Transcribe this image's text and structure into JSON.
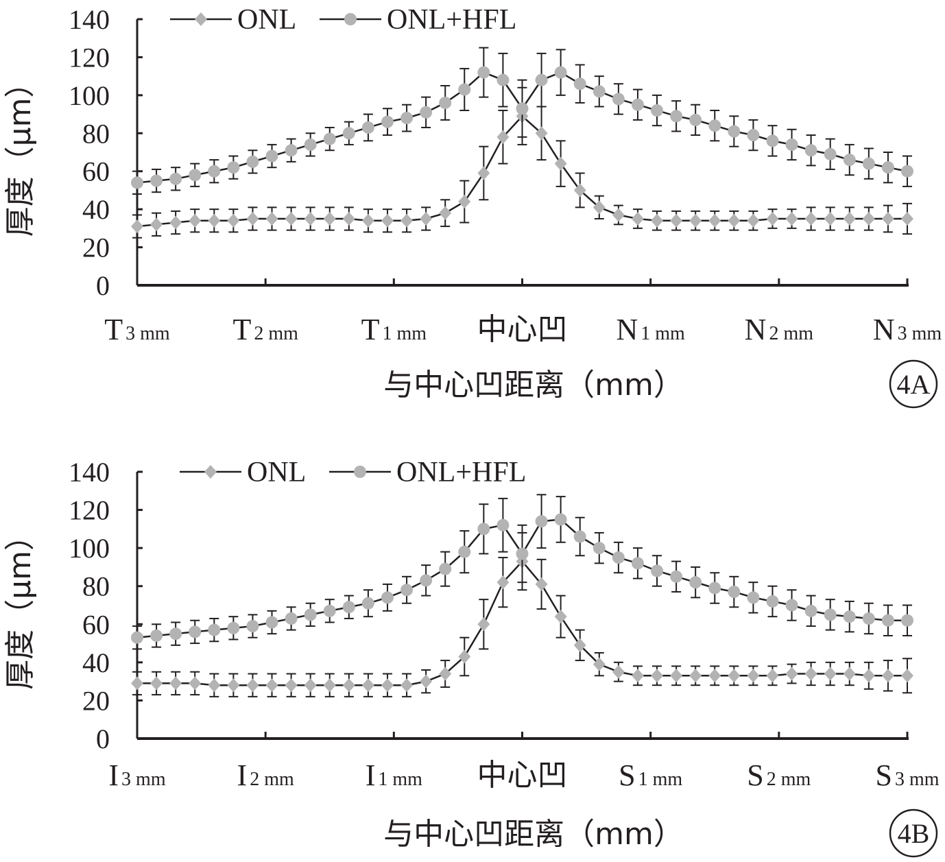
{
  "colors": {
    "axis": "#231f20",
    "line": "#231f20",
    "marker": "#b3b3b3",
    "error_bar": "#231f20"
  },
  "chart_data": [
    {
      "type": "line",
      "panel_label": "4A",
      "ylabel": "厚度（μm）",
      "xlabel": "与中心凹距离（mm）",
      "ylim": [
        0,
        140
      ],
      "yticks": [
        "0",
        "20",
        "40",
        "60",
        "80",
        "100",
        "120",
        "140"
      ],
      "category_labels": [
        {
          "main": "T",
          "sub": "3 mm"
        },
        {
          "main": "T",
          "sub": "2 mm"
        },
        {
          "main": "T",
          "sub": "1 mm"
        },
        {
          "main": "中心凹",
          "sub": ""
        },
        {
          "main": "N",
          "sub": "1 mm"
        },
        {
          "main": "N",
          "sub": "2 mm"
        },
        {
          "main": "N",
          "sub": "3 mm"
        }
      ],
      "x": [
        -3.0,
        -2.9,
        -2.8,
        -2.7,
        -2.6,
        -2.5,
        -2.4,
        -2.3,
        -2.2,
        -2.1,
        -2.0,
        -1.9,
        -1.8,
        -1.7,
        -1.6,
        -1.5,
        -1.4,
        -1.3,
        -1.2,
        -1.1,
        -1.0,
        -0.9,
        -0.8,
        -0.7,
        -0.6,
        -0.5,
        -0.4,
        -0.3,
        -0.2,
        -0.1,
        0.0,
        0.1,
        0.2,
        0.3,
        0.4,
        0.5,
        0.6,
        0.7,
        0.8,
        0.9,
        1.0,
        1.1,
        1.2,
        1.3,
        1.4,
        1.5,
        1.6,
        1.7,
        1.8,
        1.9,
        2.0,
        2.1,
        2.2,
        2.3,
        2.4,
        2.5,
        2.6,
        2.7,
        2.8,
        2.9,
        3.0
      ],
      "legend_position": "top-left",
      "series": [
        {
          "name": "ONL",
          "marker": "diamond",
          "x": [
            -3.0,
            -2.85,
            -2.7,
            -2.55,
            -2.4,
            -2.25,
            -2.1,
            -1.95,
            -1.8,
            -1.65,
            -1.5,
            -1.35,
            -1.2,
            -1.05,
            -0.9,
            -0.75,
            -0.6,
            -0.45,
            -0.3,
            -0.15,
            0.0,
            0.15,
            0.3,
            0.45,
            0.6,
            0.75,
            0.9,
            1.05,
            1.2,
            1.35,
            1.5,
            1.65,
            1.8,
            1.95,
            2.1,
            2.25,
            2.4,
            2.55,
            2.7,
            2.85,
            3.0
          ],
          "values": [
            31,
            32,
            33,
            34,
            34,
            34,
            35,
            35,
            35,
            35,
            35,
            35,
            34,
            34,
            34,
            35,
            38,
            44,
            59,
            78,
            89,
            80,
            64,
            50,
            41,
            37,
            35,
            34,
            34,
            34,
            34,
            34,
            34,
            35,
            35,
            35,
            35,
            35,
            35,
            35,
            35
          ],
          "errors": [
            6,
            6,
            6,
            6,
            6,
            6,
            6,
            6,
            6,
            6,
            6,
            6,
            6,
            6,
            6,
            6,
            7,
            11,
            14,
            14,
            15,
            14,
            12,
            9,
            6,
            5,
            5,
            5,
            5,
            5,
            5,
            5,
            5,
            5,
            5,
            6,
            6,
            6,
            6,
            7,
            8
          ]
        },
        {
          "name": "ONL+HFL",
          "marker": "circle",
          "x": [
            -3.0,
            -2.85,
            -2.7,
            -2.55,
            -2.4,
            -2.25,
            -2.1,
            -1.95,
            -1.8,
            -1.65,
            -1.5,
            -1.35,
            -1.2,
            -1.05,
            -0.9,
            -0.75,
            -0.6,
            -0.45,
            -0.3,
            -0.15,
            0.0,
            0.15,
            0.3,
            0.45,
            0.6,
            0.75,
            0.9,
            1.05,
            1.2,
            1.35,
            1.5,
            1.65,
            1.8,
            1.95,
            2.1,
            2.25,
            2.4,
            2.55,
            2.7,
            2.85,
            3.0
          ],
          "values": [
            54,
            55,
            56,
            58,
            60,
            62,
            65,
            68,
            71,
            74,
            77,
            80,
            83,
            86,
            88,
            91,
            96,
            103,
            112,
            108,
            93,
            108,
            112,
            106,
            102,
            98,
            95,
            92,
            89,
            87,
            84,
            81,
            79,
            76,
            74,
            71,
            69,
            66,
            64,
            62,
            60
          ],
          "errors": [
            6,
            6,
            6,
            6,
            6,
            6,
            6,
            6,
            6,
            6,
            6,
            6,
            7,
            7,
            7,
            8,
            9,
            11,
            13,
            14,
            15,
            14,
            12,
            10,
            8,
            8,
            8,
            8,
            8,
            8,
            8,
            8,
            8,
            8,
            8,
            8,
            8,
            8,
            8,
            8,
            8
          ]
        }
      ]
    },
    {
      "type": "line",
      "panel_label": "4B",
      "ylabel": "厚度（μm）",
      "xlabel": "与中心凹距离（mm）",
      "ylim": [
        0,
        140
      ],
      "yticks": [
        "0",
        "20",
        "40",
        "60",
        "80",
        "100",
        "120",
        "140"
      ],
      "category_labels": [
        {
          "main": "I",
          "sub": "3 mm"
        },
        {
          "main": "I",
          "sub": "2 mm"
        },
        {
          "main": "I",
          "sub": "1 mm"
        },
        {
          "main": "中心凹",
          "sub": ""
        },
        {
          "main": "S",
          "sub": "1 mm"
        },
        {
          "main": "S",
          "sub": "2 mm"
        },
        {
          "main": "S",
          "sub": "3 mm"
        }
      ],
      "legend_position": "top-left",
      "series": [
        {
          "name": "ONL",
          "marker": "diamond",
          "x": [
            -3.0,
            -2.85,
            -2.7,
            -2.55,
            -2.4,
            -2.25,
            -2.1,
            -1.95,
            -1.8,
            -1.65,
            -1.5,
            -1.35,
            -1.2,
            -1.05,
            -0.9,
            -0.75,
            -0.6,
            -0.45,
            -0.3,
            -0.15,
            0.0,
            0.15,
            0.3,
            0.45,
            0.6,
            0.75,
            0.9,
            1.05,
            1.2,
            1.35,
            1.5,
            1.65,
            1.8,
            1.95,
            2.1,
            2.25,
            2.4,
            2.55,
            2.7,
            2.85,
            3.0
          ],
          "values": [
            29,
            29,
            29,
            29,
            28,
            28,
            28,
            28,
            28,
            28,
            28,
            28,
            28,
            28,
            28,
            30,
            34,
            43,
            60,
            82,
            93,
            81,
            64,
            49,
            39,
            35,
            33,
            33,
            33,
            33,
            33,
            33,
            33,
            33,
            34,
            34,
            34,
            34,
            33,
            33,
            33
          ],
          "errors": [
            6,
            6,
            6,
            6,
            6,
            6,
            6,
            6,
            6,
            6,
            6,
            6,
            6,
            6,
            6,
            6,
            7,
            10,
            13,
            13,
            15,
            13,
            11,
            8,
            6,
            5,
            5,
            5,
            5,
            5,
            5,
            5,
            5,
            5,
            5,
            6,
            6,
            6,
            7,
            8,
            9
          ]
        },
        {
          "name": "ONL+HFL",
          "marker": "circle",
          "x": [
            -3.0,
            -2.85,
            -2.7,
            -2.55,
            -2.4,
            -2.25,
            -2.1,
            -1.95,
            -1.8,
            -1.65,
            -1.5,
            -1.35,
            -1.2,
            -1.05,
            -0.9,
            -0.75,
            -0.6,
            -0.45,
            -0.3,
            -0.15,
            0.0,
            0.15,
            0.3,
            0.45,
            0.6,
            0.75,
            0.9,
            1.05,
            1.2,
            1.35,
            1.5,
            1.65,
            1.8,
            1.95,
            2.1,
            2.25,
            2.4,
            2.55,
            2.7,
            2.85,
            3.0
          ],
          "values": [
            53,
            54,
            55,
            56,
            57,
            58,
            59,
            61,
            63,
            65,
            67,
            69,
            71,
            74,
            78,
            83,
            89,
            98,
            110,
            112,
            97,
            114,
            115,
            106,
            100,
            95,
            92,
            88,
            85,
            82,
            79,
            77,
            74,
            72,
            70,
            67,
            65,
            64,
            63,
            62,
            62
          ],
          "errors": [
            6,
            6,
            6,
            6,
            6,
            6,
            6,
            6,
            6,
            6,
            6,
            6,
            7,
            7,
            7,
            8,
            9,
            11,
            13,
            14,
            15,
            14,
            12,
            10,
            8,
            8,
            8,
            8,
            8,
            8,
            8,
            8,
            8,
            8,
            8,
            8,
            8,
            8,
            8,
            8,
            8
          ]
        }
      ]
    }
  ]
}
